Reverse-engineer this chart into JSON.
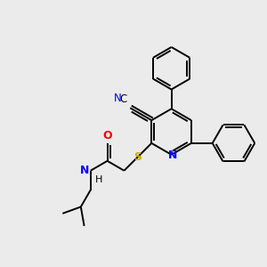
{
  "background_color": "#ebebeb",
  "atom_colors": {
    "N": "#0000ff",
    "O": "#ff0000",
    "S": "#ccaa00",
    "C": "#000000",
    "H": "#000000"
  },
  "bond_lw": 1.4,
  "font_size": 8.5,
  "figsize": [
    3.0,
    3.0
  ],
  "dpi": 100,
  "xlim": [
    0,
    300
  ],
  "ylim": [
    0,
    300
  ]
}
